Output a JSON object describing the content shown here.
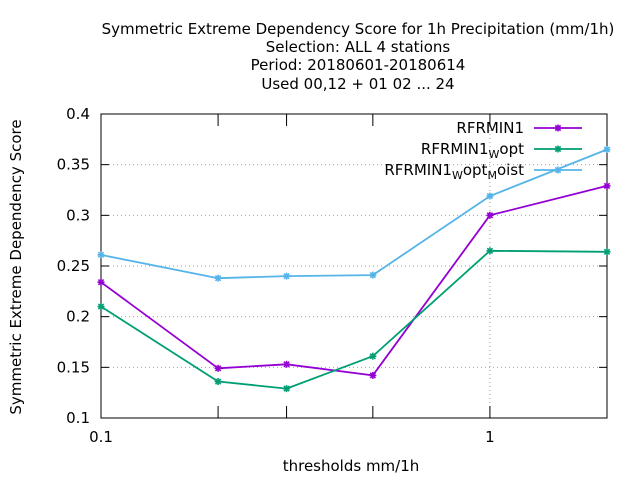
{
  "chart_data": {
    "type": "line",
    "title_lines": [
      "Symmetric Extreme Dependency Score  for 1h Precipitation (mm/1h)",
      "Selection: ALL      4 stations",
      "Period: 20180601-20180614",
      "Used  00,12  + 01 02 ... 24"
    ],
    "xlabel": "thresholds mm/1h",
    "ylabel": "Symmetric Extreme Dependency Score",
    "x_scale": "log",
    "xlim": [
      0.1,
      2
    ],
    "ylim": [
      0.1,
      0.4
    ],
    "x_tick_labels": [
      "0.1",
      "1"
    ],
    "x_minor_ticks": [
      0.2,
      0.3,
      0.5,
      2
    ],
    "y_tick_labels": [
      "0.1",
      "0.15",
      "0.2",
      "0.25",
      "0.3",
      "0.35",
      "0.4"
    ],
    "legend_position": "top-right",
    "x": [
      0.1,
      0.2,
      0.3,
      0.5,
      1,
      2
    ],
    "series": [
      {
        "name": "RFRMIN1",
        "name_parts": {
          "base": "RFRMIN1",
          "sub1": "",
          "mid": "",
          "sub2": "",
          "tail": ""
        },
        "color": "#9400d3",
        "values": [
          0.234,
          0.149,
          0.153,
          0.142,
          0.3,
          0.329
        ]
      },
      {
        "name": "RFRMIN1_Wopt",
        "name_parts": {
          "base": "RFRMIN1",
          "sub1": "W",
          "mid": "opt",
          "sub2": "",
          "tail": ""
        },
        "color": "#009e73",
        "values": [
          0.21,
          0.136,
          0.129,
          0.161,
          0.265,
          0.264
        ]
      },
      {
        "name": "RFRMIN1_Wopt_Moist",
        "name_parts": {
          "base": "RFRMIN1",
          "sub1": "W",
          "mid": "opt",
          "sub2": "M",
          "tail": "oist"
        },
        "color": "#56b4e9",
        "values": [
          0.261,
          0.238,
          0.24,
          0.241,
          0.319,
          0.365
        ]
      }
    ]
  }
}
